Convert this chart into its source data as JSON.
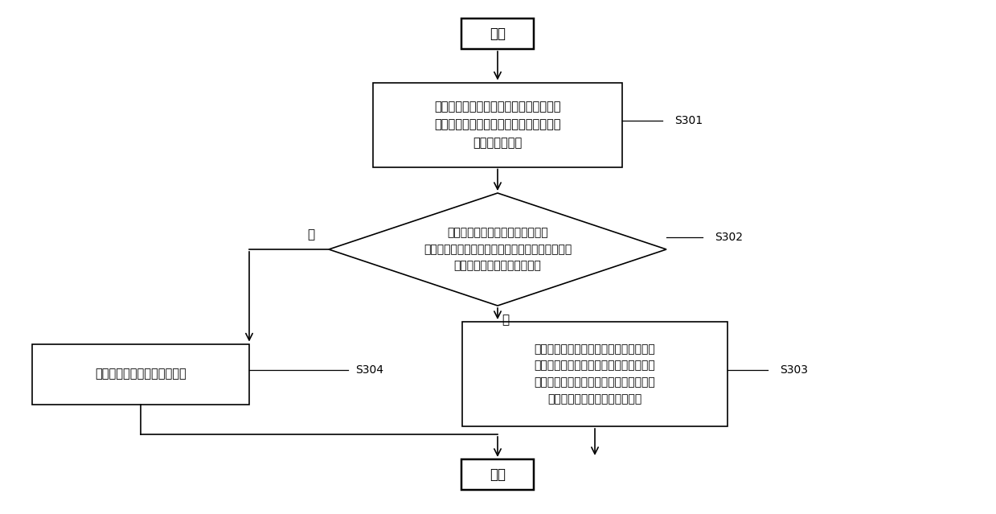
{
  "bg_color": "#ffffff",
  "start_text": "开始",
  "end_text": "结束",
  "box1_text": "当接收到与第一待测电源连通的第一电源\n指示信号引脚输出的电源指示信号时，记\n录第一上电时间",
  "diamond_text": "判断在第一上电时间后的预设时间\n内是否接收到与第二待测电源连通的第二电源指示\n信号引脚输出的电源指示信号",
  "box3_text": "记录第二待测电源的第二上电时间与第一\n上电时间之间的时间间隔，输出时间间隔\n、第一电源指示信号引脚输出的波形和第\n二电源指示信号引脚输出的波形",
  "box4_text": "输出第一报错信号并停止测试",
  "yes_text": "是",
  "no_text": "否",
  "s301": "S301",
  "s302": "S302",
  "s303": "S303",
  "s304": "S304",
  "line_color": "#000000",
  "box_edge_color": "#000000",
  "box_face_color": "#ffffff",
  "text_color": "#000000"
}
